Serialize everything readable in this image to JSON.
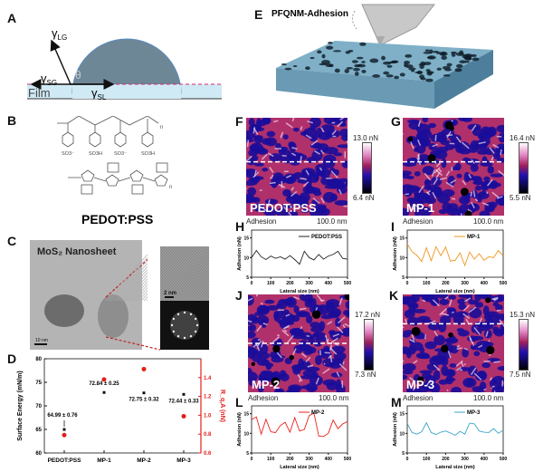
{
  "panels": {
    "A": {
      "label": "A",
      "gamma_lg": "γ",
      "sub_lg": "LG",
      "gamma_sg": "γ",
      "sub_sg": "SG",
      "gamma_sl": "γ",
      "sub_sl": "SL",
      "theta": "θ",
      "film": "Film"
    },
    "B": {
      "label": "B",
      "groups": [
        "SO3⁻",
        "SO3H",
        "SO3⁻",
        "SO3H"
      ],
      "n": "n",
      "name": "PEDOT:PSS"
    },
    "C": {
      "label": "C",
      "title": "MoS₂ Nanosheet",
      "scale_main": "10 nm",
      "scale_inset": "2 nm"
    },
    "D": {
      "label": "D"
    },
    "E": {
      "label": "E",
      "title": "PFQNM-Adhesion"
    },
    "F": {
      "label": "F",
      "sample": "PEDOT:PSS",
      "cb_max": "13.0 nN",
      "cb_min": "6.4 nN",
      "channel": "Adhesion",
      "scale": "100.0 nm"
    },
    "G": {
      "label": "G",
      "sample": "MP-1",
      "cb_max": "16.4 nN",
      "cb_min": "5.5 nN",
      "channel": "Adhesion",
      "scale": "100.0 nm"
    },
    "J": {
      "label": "J",
      "sample": "MP-2",
      "cb_max": "17.2 nN",
      "cb_min": "7.3 nN",
      "channel": "Adhesion",
      "scale": "100.0 nm"
    },
    "K": {
      "label": "K",
      "sample": "MP-3",
      "cb_max": "15.3 nN",
      "cb_min": "7.5 nN",
      "channel": "Adhesion",
      "scale": "100.0 nm"
    },
    "H": {
      "label": "H"
    },
    "I": {
      "label": "I"
    },
    "L": {
      "label": "L"
    },
    "M": {
      "label": "M"
    }
  },
  "colors": {
    "black": "#111111",
    "red": "#e0201c",
    "pedot": "#222222",
    "mp1": "#f0961e",
    "mp2": "#e8231c",
    "mp3": "#3aa6c8",
    "afm_dark": "#1a0d9a",
    "afm_mid": "#b0306c",
    "afm_light": "#f4d8ee",
    "drop": "#6e8796",
    "film": "#cfeaf5",
    "dash": "#d6286e"
  },
  "chart_data": [
    {
      "type": "scatter",
      "panel": "D",
      "categories": [
        "PEDOT:PSS",
        "MP-1",
        "MP-2",
        "MP-3"
      ],
      "series": [
        {
          "axis": "left",
          "color": "#111111",
          "values": [
            64.99,
            72.84,
            72.75,
            72.44
          ],
          "labels": [
            "64.99 ± 0.76",
            "72.84 ± 0.25",
            "72.75 ± 0.32",
            "72.44 ± 0.33"
          ]
        },
        {
          "axis": "right",
          "color": "#e0201c",
          "values": [
            0.79,
            1.38,
            1.49,
            0.99
          ]
        }
      ],
      "ylabel": "Surface Energy (mN/m)",
      "y2label": "R_q,A (nN)",
      "ylim": [
        60,
        80
      ],
      "yticks": [
        60,
        65,
        70,
        75,
        80
      ],
      "y2lim": [
        0.6,
        1.6
      ],
      "y2ticks": [
        "0.6",
        "0.8",
        "1.0",
        "1.2",
        "1.4"
      ]
    },
    {
      "type": "line",
      "panel": "H",
      "name": "PEDOT:PSS",
      "color": "#222222",
      "xlabel": "Lateral size (nm)",
      "ylabel": "Adhesion (nN)",
      "xlim": [
        0,
        500
      ],
      "ylim": [
        5,
        17
      ],
      "xticks": [
        0,
        100,
        200,
        300,
        400,
        500
      ],
      "yticks": [
        5,
        10,
        15
      ],
      "x": [
        0,
        25,
        50,
        75,
        100,
        125,
        150,
        175,
        200,
        225,
        250,
        275,
        300,
        325,
        350,
        375,
        400,
        425,
        450,
        475,
        500
      ],
      "y": [
        10,
        11.8,
        10.2,
        9.5,
        10.4,
        9.8,
        10.2,
        9.6,
        10.5,
        9.5,
        8.3,
        11.6,
        10,
        9.4,
        10.8,
        9.6,
        10.4,
        10.8,
        11.6,
        9.8,
        9.6
      ]
    },
    {
      "type": "line",
      "panel": "I",
      "name": "MP-1",
      "color": "#f0961e",
      "xlabel": "Lateral size (nm)",
      "ylabel": "Adhesion (nN)",
      "xlim": [
        0,
        500
      ],
      "ylim": [
        5,
        17
      ],
      "xticks": [
        0,
        100,
        200,
        300,
        400,
        500
      ],
      "yticks": [
        5,
        10,
        15
      ],
      "x": [
        0,
        25,
        50,
        75,
        100,
        125,
        150,
        175,
        200,
        225,
        250,
        275,
        300,
        325,
        350,
        375,
        400,
        425,
        450,
        475,
        500
      ],
      "y": [
        13.5,
        11.5,
        10.6,
        9,
        12.5,
        9.2,
        12.8,
        10.5,
        12.7,
        9.1,
        9.3,
        11.2,
        8,
        11.4,
        9.6,
        11,
        9.3,
        10.2,
        10,
        11.8,
        10.4
      ]
    },
    {
      "type": "line",
      "panel": "L",
      "name": "MP-2",
      "color": "#e8231c",
      "xlabel": "Lateral size (nm)",
      "ylabel": "Adhesion (nN)",
      "xlim": [
        0,
        500
      ],
      "ylim": [
        5,
        17
      ],
      "xticks": [
        0,
        100,
        200,
        300,
        400,
        500
      ],
      "yticks": [
        5,
        10,
        15
      ],
      "x": [
        0,
        25,
        50,
        75,
        100,
        125,
        150,
        175,
        200,
        225,
        250,
        275,
        300,
        325,
        350,
        375,
        400,
        425,
        450,
        475,
        500
      ],
      "y": [
        13.5,
        14.2,
        9.8,
        13.6,
        10.4,
        10.2,
        12,
        12.8,
        10.3,
        14,
        10.6,
        11,
        14.5,
        15.2,
        9.3,
        9.2,
        10,
        13.4,
        11.2,
        12.4,
        13
      ]
    },
    {
      "type": "line",
      "panel": "M",
      "name": "MP-3",
      "color": "#3aa6c8",
      "xlabel": "Lateral size (nm)",
      "ylabel": "Adhesion (nN)",
      "xlim": [
        0,
        500
      ],
      "ylim": [
        5,
        17
      ],
      "xticks": [
        0,
        100,
        200,
        300,
        400,
        500
      ],
      "yticks": [
        5,
        10,
        15
      ],
      "x": [
        0,
        25,
        50,
        75,
        100,
        125,
        150,
        175,
        200,
        225,
        250,
        275,
        300,
        325,
        350,
        375,
        400,
        425,
        450,
        475,
        500
      ],
      "y": [
        12.5,
        10.2,
        9.8,
        10.4,
        12.7,
        10.2,
        9.7,
        10.3,
        10.6,
        10.1,
        9.5,
        10.5,
        9.8,
        12.6,
        12.4,
        10.6,
        10.3,
        10.2,
        11.2,
        10,
        10.8
      ]
    }
  ]
}
